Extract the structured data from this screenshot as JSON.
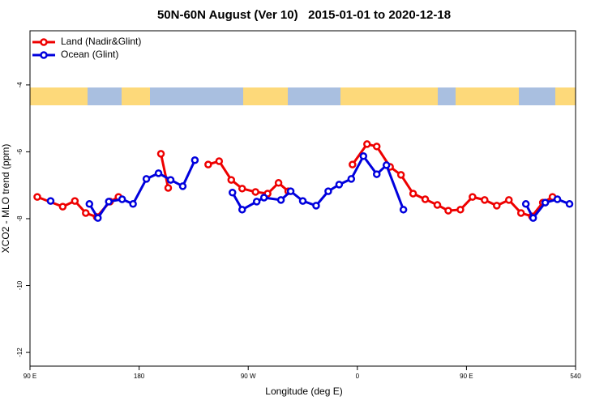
{
  "chart_data": {
    "type": "line",
    "title": "50N-60N August (Ver 10)   2015-01-01 to 2020-12-18",
    "x_label": "Longitude (deg E)",
    "y_label": "XCO2 - MLO trend (ppm)",
    "xlim": [
      90,
      540
    ],
    "xticks": [
      {
        "value": 90,
        "label": "90 E"
      },
      180,
      {
        "value": 270,
        "label": "90 W"
      },
      {
        "value": 360,
        "label": "0"
      },
      {
        "value": 450,
        "label": "90 E"
      },
      540
    ],
    "ylim": [
      -12.41,
      -2.38
    ],
    "yticks": [
      -4,
      -6,
      -8,
      -10,
      -12
    ],
    "legend": "top-left",
    "series": [
      {
        "name": "Land (Nadir&Glint)",
        "color": "#ee0000",
        "x": [
          96,
          117,
          127,
          136,
          145,
          156,
          163,
          null,
          198,
          204,
          null,
          237,
          246,
          256,
          265,
          276,
          286,
          295,
          303,
          null,
          356,
          368,
          376,
          387,
          396,
          406,
          416,
          426,
          435,
          445,
          455,
          465,
          475,
          485,
          495,
          504,
          513,
          521
        ],
        "values": [
          -7.35,
          -7.64,
          -7.47,
          -7.83,
          -7.95,
          -7.49,
          -7.35,
          null,
          -6.06,
          -7.08,
          null,
          -6.38,
          -6.28,
          -6.84,
          -7.1,
          -7.2,
          -7.25,
          -6.93,
          -7.18,
          null,
          -6.38,
          -5.77,
          -5.84,
          -6.45,
          -6.69,
          -7.25,
          -7.42,
          -7.59,
          -7.76,
          -7.73,
          -7.35,
          -7.44,
          -7.61,
          -7.44,
          -7.83,
          -7.93,
          -7.52,
          -7.35
        ]
      },
      {
        "name": "Ocean (Glint)",
        "color": "#0000dd",
        "x": [
          107,
          null,
          139,
          146,
          155,
          166,
          175,
          186,
          196,
          206,
          216,
          226,
          null,
          257,
          265,
          277,
          283,
          297,
          305,
          315,
          326,
          336,
          345,
          355,
          365,
          376,
          384,
          398,
          null,
          499,
          505,
          515,
          525,
          535
        ],
        "values": [
          -7.47,
          null,
          -7.56,
          -7.98,
          -7.49,
          -7.42,
          -7.56,
          -6.81,
          -6.64,
          -6.84,
          -7.03,
          -6.25,
          null,
          -7.22,
          -7.73,
          -7.49,
          -7.37,
          -7.44,
          -7.18,
          -7.47,
          -7.61,
          -7.18,
          -6.98,
          -6.81,
          -6.13,
          -6.67,
          -6.4,
          -7.73,
          null,
          -7.56,
          -7.98,
          -7.52,
          -7.42,
          -7.56
        ]
      }
    ]
  }
}
